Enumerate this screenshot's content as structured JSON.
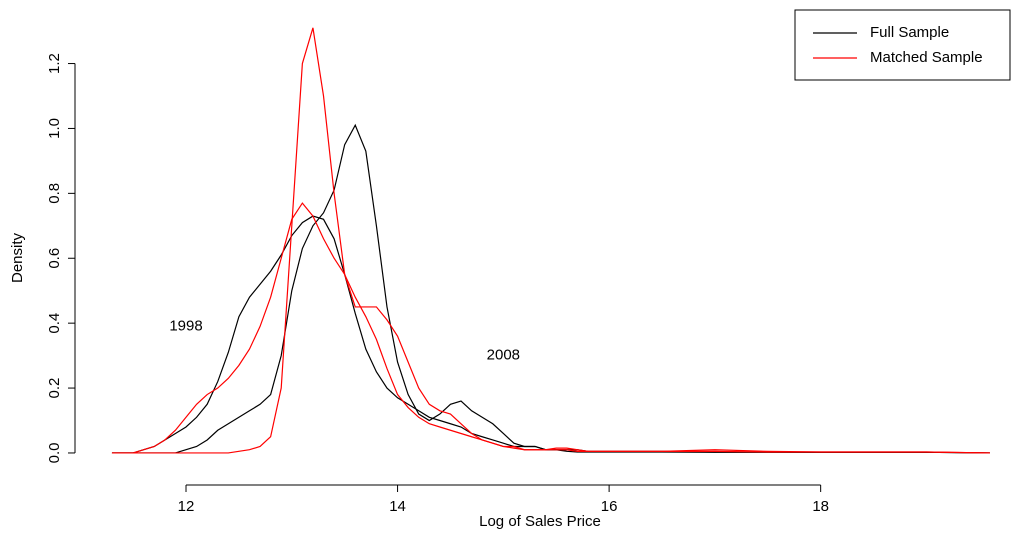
{
  "chart_data": {
    "type": "line",
    "x_label": "Log of Sales Price",
    "y_label": "Density",
    "x": [
      11.3,
      11.4,
      11.5,
      11.6,
      11.7,
      11.8,
      11.9,
      12.0,
      12.1,
      12.2,
      12.3,
      12.4,
      12.5,
      12.6,
      12.7,
      12.8,
      12.9,
      13.0,
      13.1,
      13.2,
      13.3,
      13.4,
      13.5,
      13.6,
      13.7,
      13.8,
      13.9,
      14.0,
      14.1,
      14.2,
      14.3,
      14.4,
      14.5,
      14.6,
      14.7,
      14.8,
      14.9,
      15.0,
      15.1,
      15.2,
      15.3,
      15.4,
      15.5,
      15.6,
      15.7,
      15.8,
      15.9,
      16.0,
      16.5,
      17,
      17.5,
      18,
      18.5,
      19,
      19.6
    ],
    "series": [
      {
        "color": "#000000",
        "values": [
          0,
          0,
          0,
          0.01,
          0.02,
          0.04,
          0.06,
          0.08,
          0.11,
          0.15,
          0.22,
          0.31,
          0.42,
          0.48,
          0.52,
          0.56,
          0.61,
          0.67,
          0.71,
          0.73,
          0.72,
          0.66,
          0.55,
          0.43,
          0.32,
          0.25,
          0.2,
          0.17,
          0.15,
          0.13,
          0.11,
          0.1,
          0.09,
          0.08,
          0.06,
          0.05,
          0.04,
          0.03,
          0.02,
          0.02,
          0.02,
          0.01,
          0.01,
          0.01,
          0.01,
          0.005,
          0.005,
          0.005,
          0.005,
          0.003,
          0.003,
          0.002,
          0.002,
          0.002,
          0
        ]
      },
      {
        "color": "#000000",
        "values": [
          0,
          0,
          0,
          0,
          0,
          0,
          0,
          0.01,
          0.02,
          0.04,
          0.07,
          0.09,
          0.11,
          0.13,
          0.15,
          0.18,
          0.3,
          0.5,
          0.63,
          0.7,
          0.74,
          0.81,
          0.95,
          1.01,
          0.93,
          0.7,
          0.45,
          0.28,
          0.18,
          0.12,
          0.1,
          0.12,
          0.15,
          0.16,
          0.13,
          0.11,
          0.09,
          0.06,
          0.03,
          0.02,
          0.02,
          0.01,
          0.01,
          0.005,
          0.003,
          0.003,
          0.003,
          0.003,
          0.003,
          0.002,
          0.002,
          0.002,
          0.002,
          0.002,
          0
        ]
      },
      {
        "color": "#ff0000",
        "values": [
          0,
          0,
          0,
          0.01,
          0.02,
          0.04,
          0.07,
          0.11,
          0.15,
          0.18,
          0.2,
          0.23,
          0.27,
          0.32,
          0.39,
          0.48,
          0.6,
          0.72,
          0.77,
          0.73,
          0.66,
          0.6,
          0.55,
          0.48,
          0.42,
          0.35,
          0.26,
          0.18,
          0.14,
          0.11,
          0.09,
          0.08,
          0.07,
          0.06,
          0.05,
          0.04,
          0.03,
          0.02,
          0.02,
          0.01,
          0.01,
          0.01,
          0.01,
          0.01,
          0.005,
          0.005,
          0.005,
          0.005,
          0.005,
          0.01,
          0.005,
          0.003,
          0.003,
          0.003,
          0
        ]
      },
      {
        "color": "#ff0000",
        "values": [
          0,
          0,
          0,
          0,
          0,
          0,
          0,
          0,
          0,
          0,
          0,
          0,
          0.005,
          0.01,
          0.02,
          0.05,
          0.2,
          0.7,
          1.2,
          1.31,
          1.1,
          0.8,
          0.55,
          0.45,
          0.45,
          0.45,
          0.41,
          0.36,
          0.28,
          0.2,
          0.15,
          0.13,
          0.12,
          0.09,
          0.06,
          0.04,
          0.03,
          0.02,
          0.015,
          0.01,
          0.01,
          0.01,
          0.015,
          0.015,
          0.01,
          0.005,
          0.005,
          0.005,
          0.005,
          0.005,
          0.003,
          0.003,
          0.003,
          0.003,
          0
        ]
      }
    ],
    "legend": {
      "position": "topright",
      "entries": [
        {
          "name": "Full Sample",
          "color": "#000000"
        },
        {
          "name": "Matched Sample",
          "color": "#ff0000"
        }
      ]
    },
    "annotations": [
      {
        "text": "1998",
        "x": 12.0,
        "y": 0.39
      },
      {
        "text": "2008",
        "x": 15.0,
        "y": 0.3
      }
    ],
    "xlim": [
      11.045,
      19.79
    ],
    "ylim": [
      -0.0525,
      1.365
    ],
    "xticks": [
      12,
      14,
      16,
      18
    ],
    "yticks": [
      {
        "value": 0,
        "label": "0.0"
      },
      0.2,
      0.4,
      0.6,
      0.8,
      {
        "value": 1,
        "label": "1.0"
      },
      1.2
    ],
    "grid": false
  }
}
